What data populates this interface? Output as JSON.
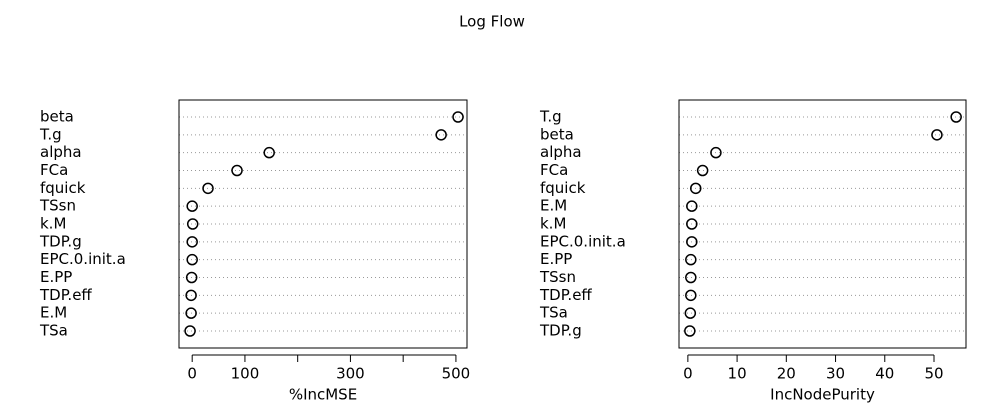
{
  "title": "Log Flow",
  "chart_data": [
    {
      "type": "dot",
      "xlabel": "%IncMSE",
      "categories": [
        "beta",
        "T.g",
        "alpha",
        "FCa",
        "fquick",
        "TSsn",
        "k.M",
        "TDP.g",
        "EPC.0.init.a",
        "E.PP",
        "TDP.eff",
        "E.M",
        "TSa"
      ],
      "values": [
        504,
        472,
        146,
        85,
        30,
        0,
        1,
        0,
        0,
        -1,
        -2,
        -2,
        -4
      ],
      "xlim": [
        -25,
        521
      ],
      "xticks": [
        0,
        100,
        {
          "value": 200,
          "label": null
        },
        300,
        {
          "value": 400,
          "label": null
        },
        500
      ],
      "color": "#000000",
      "grid": true
    },
    {
      "type": "dot",
      "xlabel": "IncNodePurity",
      "categories": [
        "T.g",
        "beta",
        "alpha",
        "FCa",
        "fquick",
        "E.M",
        "k.M",
        "EPC.0.init.a",
        "E.PP",
        "TSsn",
        "TDP.eff",
        "TSa",
        "TDP.g"
      ],
      "values": [
        54.5,
        50.6,
        5.7,
        3.0,
        1.6,
        0.8,
        0.8,
        0.8,
        0.6,
        0.6,
        0.6,
        0.5,
        0.4
      ],
      "xlim": [
        -1.8,
        56.5
      ],
      "xticks": [
        0,
        10,
        20,
        30,
        40,
        50
      ],
      "color": "#000000",
      "grid": true
    }
  ]
}
